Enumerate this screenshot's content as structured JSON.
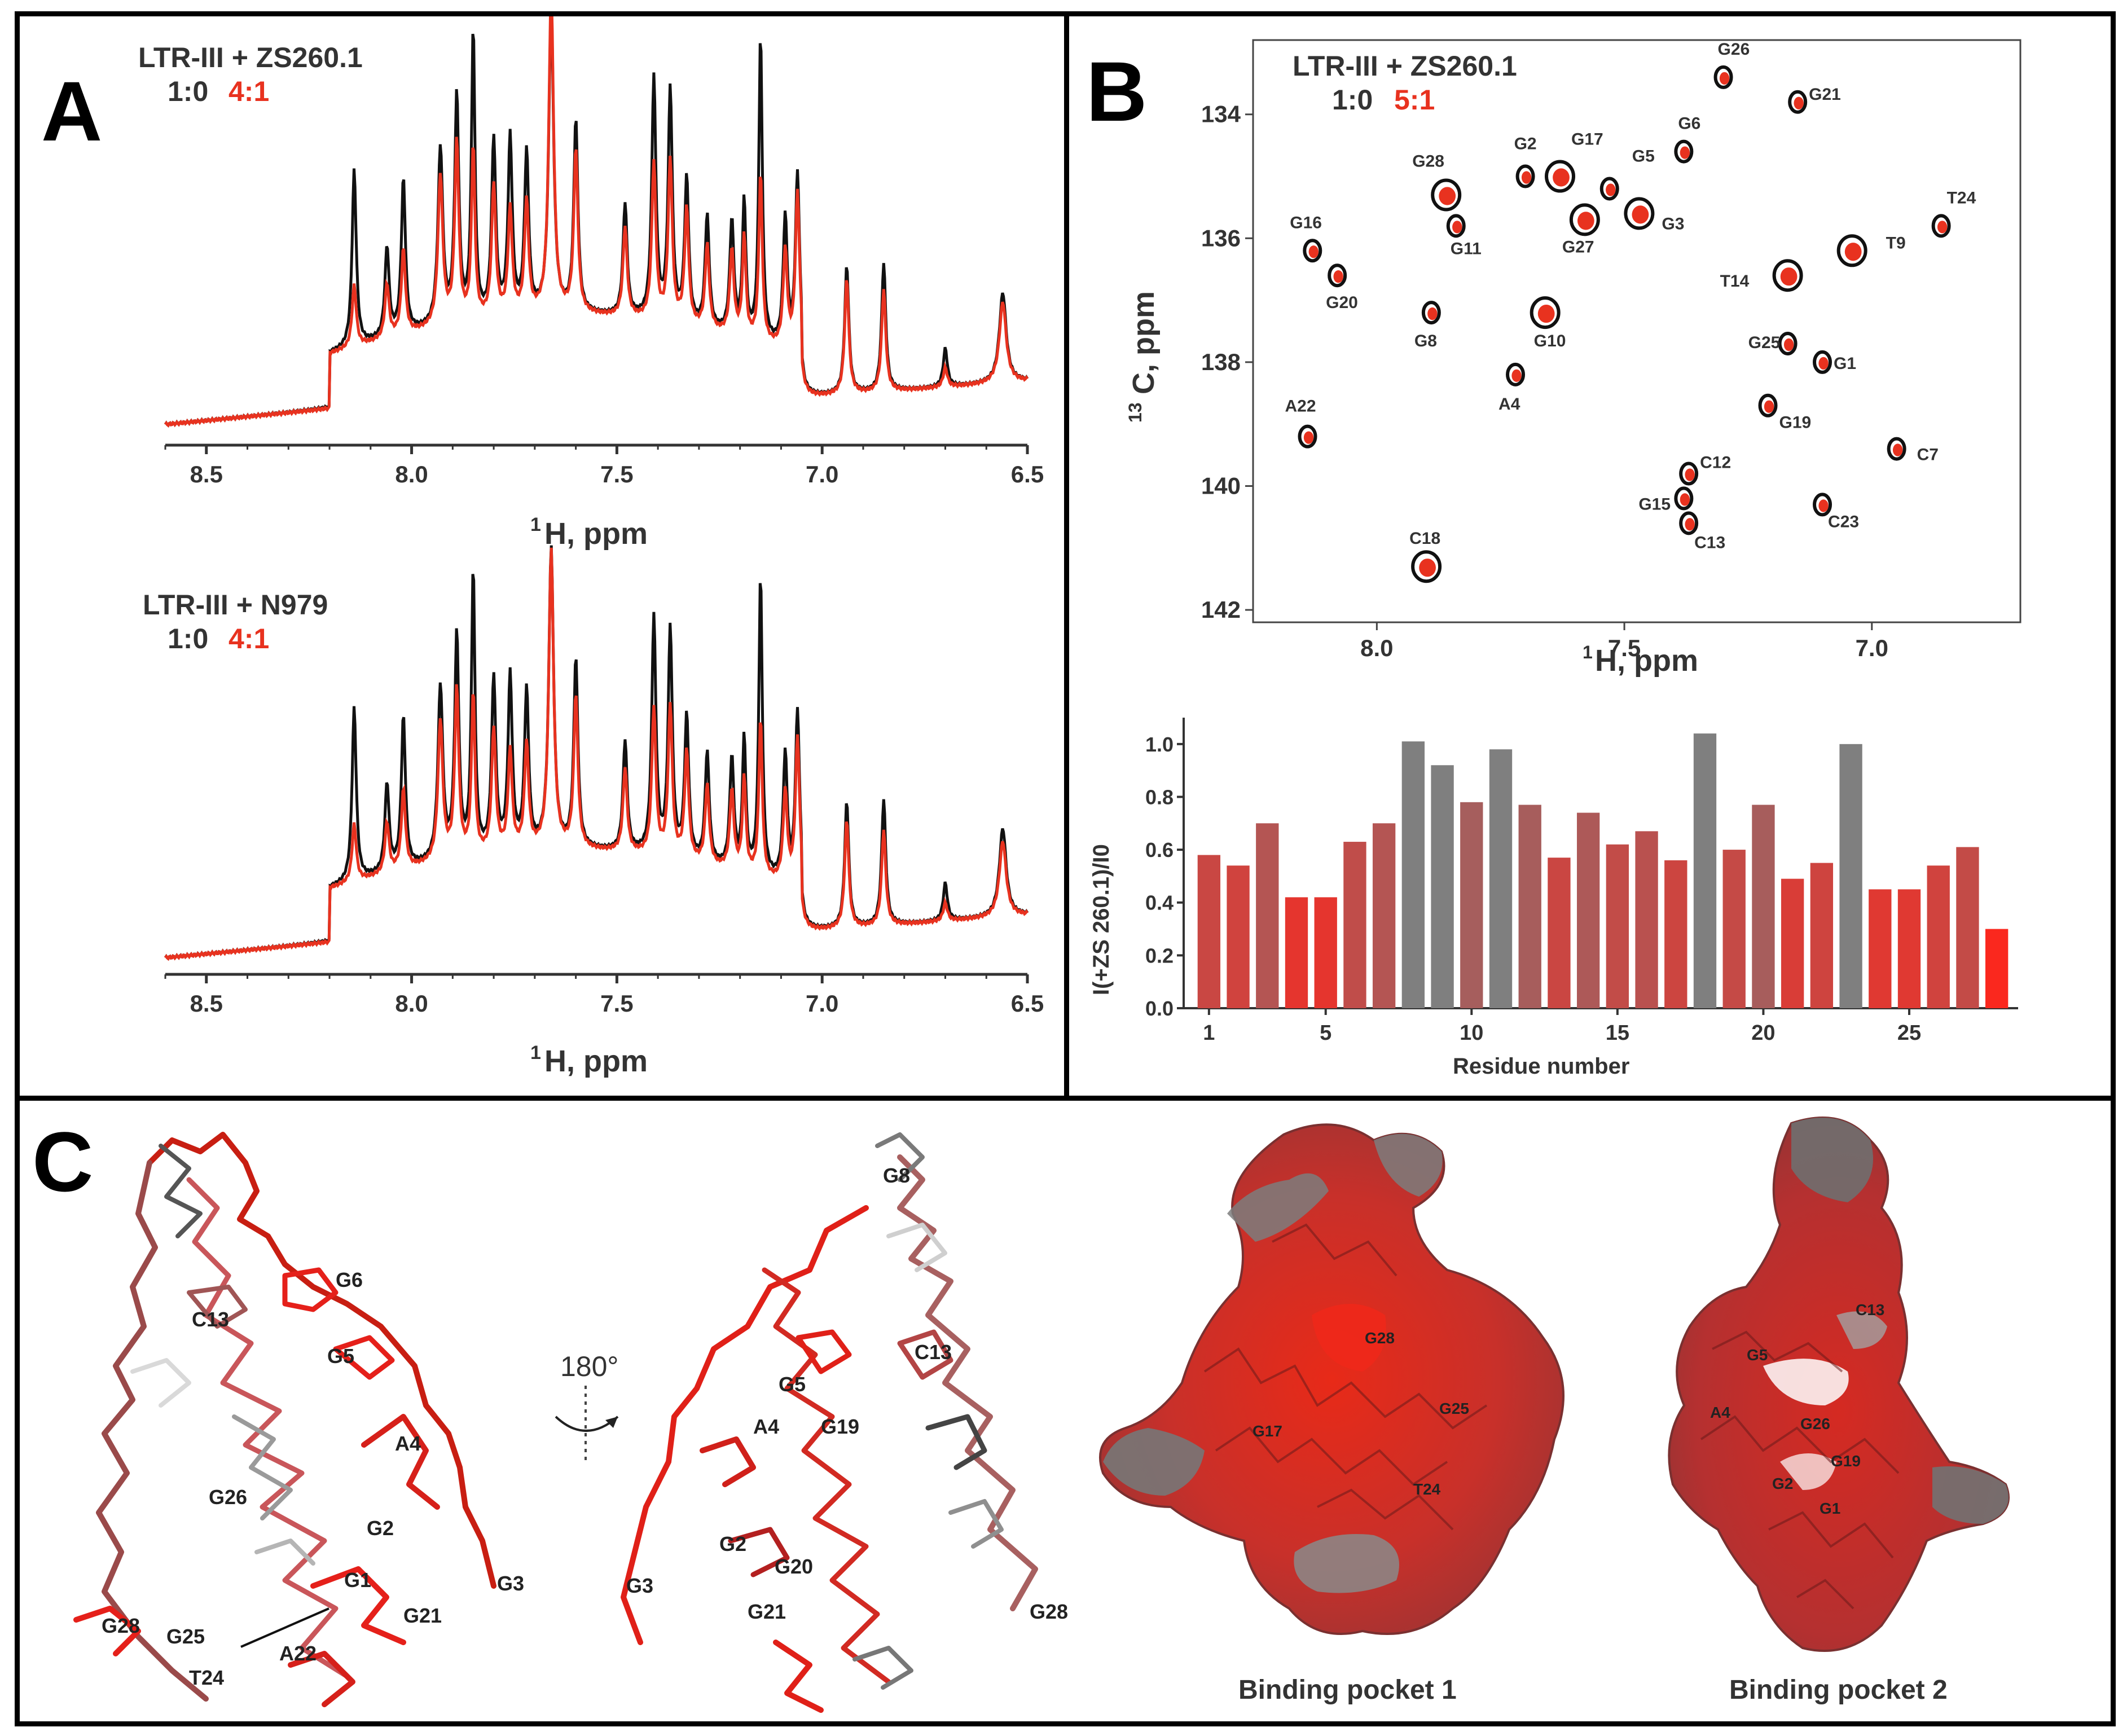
{
  "colors": {
    "black_trace": "#111111",
    "red_trace": "#e8321f",
    "grey_bar": "#7f7f7f",
    "axis": "#333333"
  },
  "panelA": {
    "letter": "A",
    "top": {
      "title": "LTR-III + ZS260.1",
      "ratio_black": "1:0",
      "ratio_red": "4:1"
    },
    "bottom": {
      "title": "LTR-III + N979",
      "ratio_black": "1:0",
      "ratio_red": "4:1"
    },
    "x_ticks": [
      "8.5",
      "8.0",
      "7.5",
      "7.0",
      "6.5"
    ],
    "x_label_sup": "1",
    "x_label": "H, ppm"
  },
  "panelB": {
    "letter": "B",
    "hsqc": {
      "title": "LTR-III + ZS260.1",
      "ratio_black": "1:0",
      "ratio_red": "5:1",
      "x_ticks": [
        "8.0",
        "7.5",
        "7.0"
      ],
      "y_ticks": [
        "134",
        "136",
        "138",
        "140",
        "142"
      ],
      "x_label_sup": "1",
      "x_label": "H, ppm",
      "y_label_sup": "13",
      "y_label": "C, ppm",
      "peaks": [
        {
          "label": "G26",
          "h": 7.3,
          "c": 133.4
        },
        {
          "label": "G21",
          "h": 7.15,
          "c": 133.8
        },
        {
          "label": "G6",
          "h": 7.38,
          "c": 134.6
        },
        {
          "label": "G28",
          "h": 7.86,
          "c": 135.3
        },
        {
          "label": "G2",
          "h": 7.7,
          "c": 135.0
        },
        {
          "label": "G17",
          "h": 7.63,
          "c": 135.0
        },
        {
          "label": "G5",
          "h": 7.53,
          "c": 135.2
        },
        {
          "label": "T24",
          "h": 6.86,
          "c": 135.8
        },
        {
          "label": "G16",
          "h": 8.13,
          "c": 136.2
        },
        {
          "label": "G11",
          "h": 7.84,
          "c": 135.8
        },
        {
          "label": "G27",
          "h": 7.58,
          "c": 135.7
        },
        {
          "label": "G3",
          "h": 7.47,
          "c": 135.6
        },
        {
          "label": "T9",
          "h": 7.04,
          "c": 136.2
        },
        {
          "label": "G20",
          "h": 8.08,
          "c": 136.6
        },
        {
          "label": "T14",
          "h": 7.17,
          "c": 136.6
        },
        {
          "label": "G8",
          "h": 7.89,
          "c": 137.2
        },
        {
          "label": "G10",
          "h": 7.66,
          "c": 137.2
        },
        {
          "label": "G25",
          "h": 7.17,
          "c": 137.7
        },
        {
          "label": "G1",
          "h": 7.1,
          "c": 138.0
        },
        {
          "label": "A4",
          "h": 7.72,
          "c": 138.2
        },
        {
          "label": "G19",
          "h": 7.21,
          "c": 138.7
        },
        {
          "label": "A22",
          "h": 8.14,
          "c": 139.2
        },
        {
          "label": "C7",
          "h": 6.95,
          "c": 139.4
        },
        {
          "label": "C12",
          "h": 7.37,
          "c": 139.8
        },
        {
          "label": "G15",
          "h": 7.38,
          "c": 140.2
        },
        {
          "label": "C23",
          "h": 7.1,
          "c": 140.3
        },
        {
          "label": "C13",
          "h": 7.37,
          "c": 140.6
        },
        {
          "label": "C18",
          "h": 7.9,
          "c": 141.3
        }
      ]
    },
    "bar": {
      "type": "bar",
      "ylabel": "I(+ZS 260.1)/I0",
      "xlabel": "Residue number",
      "y_ticks": [
        "0.0",
        "0.2",
        "0.4",
        "0.6",
        "0.8",
        "1.0"
      ],
      "x_ticks": [
        "1",
        "5",
        "10",
        "15",
        "20",
        "25"
      ],
      "ylim": [
        0,
        1.1
      ],
      "residues": [
        1,
        2,
        3,
        4,
        5,
        6,
        7,
        8,
        9,
        10,
        11,
        12,
        13,
        14,
        15,
        16,
        17,
        18,
        19,
        20,
        21,
        22,
        23,
        24,
        25,
        26,
        27,
        28
      ],
      "values": [
        0.58,
        0.54,
        0.7,
        0.42,
        0.42,
        0.63,
        0.7,
        1.01,
        0.92,
        0.78,
        0.98,
        0.77,
        0.57,
        0.74,
        0.62,
        0.67,
        0.56,
        1.04,
        0.6,
        0.77,
        0.49,
        0.55,
        1.0,
        0.45,
        0.45,
        0.54,
        0.61,
        0.3
      ]
    }
  },
  "panelC": {
    "letter": "C",
    "rotation_label": "180°",
    "captions": [
      "Binding pocket 1",
      "Binding pocket 2"
    ],
    "struct1_labels": [
      "G6",
      "C13",
      "G5",
      "A4",
      "G26",
      "G2",
      "G1",
      "G21",
      "G3",
      "G28",
      "G25",
      "A22",
      "T24"
    ],
    "struct2_labels": [
      "G8",
      "C13",
      "G5",
      "A4",
      "G19",
      "G2",
      "G20",
      "G3",
      "G21",
      "G28"
    ],
    "surf1_labels": [
      "G28",
      "G17",
      "G25",
      "T24"
    ],
    "surf2_labels": [
      "G5",
      "C13",
      "A4",
      "G26",
      "G19",
      "G2",
      "G1"
    ]
  }
}
